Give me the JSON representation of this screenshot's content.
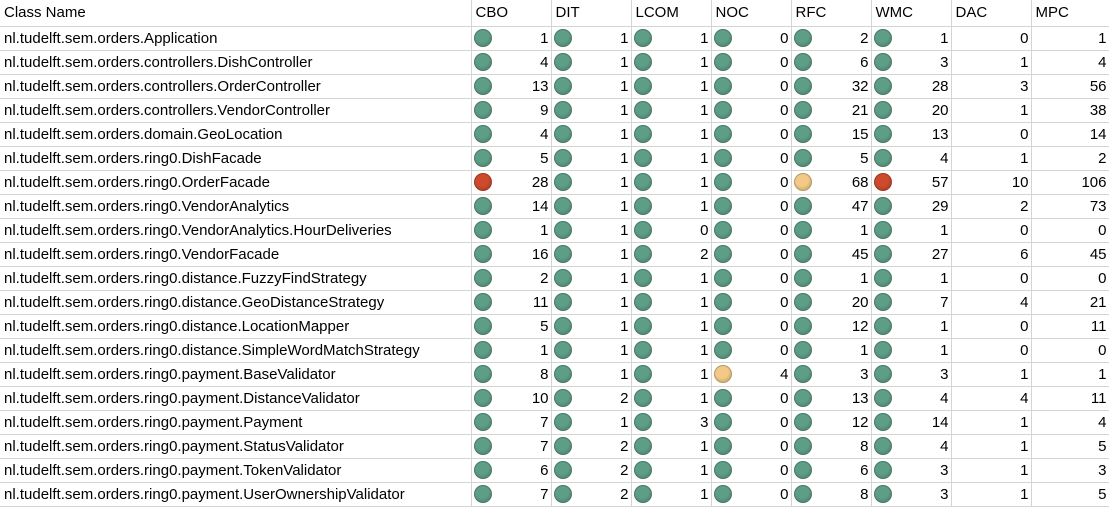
{
  "colors": {
    "low": "#5f9e86",
    "medium": "#f2c986",
    "high": "#cd4a2c"
  },
  "headers": [
    "Class Name",
    "CBO",
    "DIT",
    "LCOM",
    "NOC",
    "RFC",
    "WMC",
    "DAC",
    "MPC"
  ],
  "iconColumns": [
    "CBO",
    "DIT",
    "LCOM",
    "NOC",
    "RFC",
    "WMC"
  ],
  "rows": [
    {
      "name": "nl.tudelft.sem.orders.Application",
      "values": [
        "1",
        "1",
        "1",
        "0",
        "2",
        "1",
        "0",
        "1"
      ],
      "levels": [
        "green",
        "green",
        "green",
        "green",
        "green",
        "green"
      ]
    },
    {
      "name": "nl.tudelft.sem.orders.controllers.DishController",
      "values": [
        "4",
        "1",
        "1",
        "0",
        "6",
        "3",
        "1",
        "4"
      ],
      "levels": [
        "green",
        "green",
        "green",
        "green",
        "green",
        "green"
      ]
    },
    {
      "name": "nl.tudelft.sem.orders.controllers.OrderController",
      "values": [
        "13",
        "1",
        "1",
        "0",
        "32",
        "28",
        "3",
        "56"
      ],
      "levels": [
        "green",
        "green",
        "green",
        "green",
        "green",
        "green"
      ]
    },
    {
      "name": "nl.tudelft.sem.orders.controllers.VendorController",
      "values": [
        "9",
        "1",
        "1",
        "0",
        "21",
        "20",
        "1",
        "38"
      ],
      "levels": [
        "green",
        "green",
        "green",
        "green",
        "green",
        "green"
      ]
    },
    {
      "name": "nl.tudelft.sem.orders.domain.GeoLocation",
      "values": [
        "4",
        "1",
        "1",
        "0",
        "15",
        "13",
        "0",
        "14"
      ],
      "levels": [
        "green",
        "green",
        "green",
        "green",
        "green",
        "green"
      ]
    },
    {
      "name": "nl.tudelft.sem.orders.ring0.DishFacade",
      "values": [
        "5",
        "1",
        "1",
        "0",
        "5",
        "4",
        "1",
        "2"
      ],
      "levels": [
        "green",
        "green",
        "green",
        "green",
        "green",
        "green"
      ]
    },
    {
      "name": "nl.tudelft.sem.orders.ring0.OrderFacade",
      "values": [
        "28",
        "1",
        "1",
        "0",
        "68",
        "57",
        "10",
        "106"
      ],
      "levels": [
        "red",
        "green",
        "green",
        "green",
        "yellow",
        "red"
      ]
    },
    {
      "name": "nl.tudelft.sem.orders.ring0.VendorAnalytics",
      "values": [
        "14",
        "1",
        "1",
        "0",
        "47",
        "29",
        "2",
        "73"
      ],
      "levels": [
        "green",
        "green",
        "green",
        "green",
        "green",
        "green"
      ]
    },
    {
      "name": "nl.tudelft.sem.orders.ring0.VendorAnalytics.HourDeliveries",
      "values": [
        "1",
        "1",
        "0",
        "0",
        "1",
        "1",
        "0",
        "0"
      ],
      "levels": [
        "green",
        "green",
        "green",
        "green",
        "green",
        "green"
      ]
    },
    {
      "name": "nl.tudelft.sem.orders.ring0.VendorFacade",
      "values": [
        "16",
        "1",
        "2",
        "0",
        "45",
        "27",
        "6",
        "45"
      ],
      "levels": [
        "green",
        "green",
        "green",
        "green",
        "green",
        "green"
      ]
    },
    {
      "name": "nl.tudelft.sem.orders.ring0.distance.FuzzyFindStrategy",
      "values": [
        "2",
        "1",
        "1",
        "0",
        "1",
        "1",
        "0",
        "0"
      ],
      "levels": [
        "green",
        "green",
        "green",
        "green",
        "green",
        "green"
      ]
    },
    {
      "name": "nl.tudelft.sem.orders.ring0.distance.GeoDistanceStrategy",
      "values": [
        "11",
        "1",
        "1",
        "0",
        "20",
        "7",
        "4",
        "21"
      ],
      "levels": [
        "green",
        "green",
        "green",
        "green",
        "green",
        "green"
      ]
    },
    {
      "name": "nl.tudelft.sem.orders.ring0.distance.LocationMapper",
      "values": [
        "5",
        "1",
        "1",
        "0",
        "12",
        "1",
        "0",
        "11"
      ],
      "levels": [
        "green",
        "green",
        "green",
        "green",
        "green",
        "green"
      ]
    },
    {
      "name": "nl.tudelft.sem.orders.ring0.distance.SimpleWordMatchStrategy",
      "values": [
        "1",
        "1",
        "1",
        "0",
        "1",
        "1",
        "0",
        "0"
      ],
      "levels": [
        "green",
        "green",
        "green",
        "green",
        "green",
        "green"
      ]
    },
    {
      "name": "nl.tudelft.sem.orders.ring0.payment.BaseValidator",
      "values": [
        "8",
        "1",
        "1",
        "4",
        "3",
        "3",
        "1",
        "1"
      ],
      "levels": [
        "green",
        "green",
        "green",
        "yellow",
        "green",
        "green"
      ]
    },
    {
      "name": "nl.tudelft.sem.orders.ring0.payment.DistanceValidator",
      "values": [
        "10",
        "2",
        "1",
        "0",
        "13",
        "4",
        "4",
        "11"
      ],
      "levels": [
        "green",
        "green",
        "green",
        "green",
        "green",
        "green"
      ]
    },
    {
      "name": "nl.tudelft.sem.orders.ring0.payment.Payment",
      "values": [
        "7",
        "1",
        "3",
        "0",
        "12",
        "14",
        "1",
        "4"
      ],
      "levels": [
        "green",
        "green",
        "green",
        "green",
        "green",
        "green"
      ]
    },
    {
      "name": "nl.tudelft.sem.orders.ring0.payment.StatusValidator",
      "values": [
        "7",
        "2",
        "1",
        "0",
        "8",
        "4",
        "1",
        "5"
      ],
      "levels": [
        "green",
        "green",
        "green",
        "green",
        "green",
        "green"
      ]
    },
    {
      "name": "nl.tudelft.sem.orders.ring0.payment.TokenValidator",
      "values": [
        "6",
        "2",
        "1",
        "0",
        "6",
        "3",
        "1",
        "3"
      ],
      "levels": [
        "green",
        "green",
        "green",
        "green",
        "green",
        "green"
      ]
    },
    {
      "name": "nl.tudelft.sem.orders.ring0.payment.UserOwnershipValidator",
      "values": [
        "7",
        "2",
        "1",
        "0",
        "8",
        "3",
        "1",
        "5"
      ],
      "levels": [
        "green",
        "green",
        "green",
        "green",
        "green",
        "green"
      ]
    }
  ]
}
